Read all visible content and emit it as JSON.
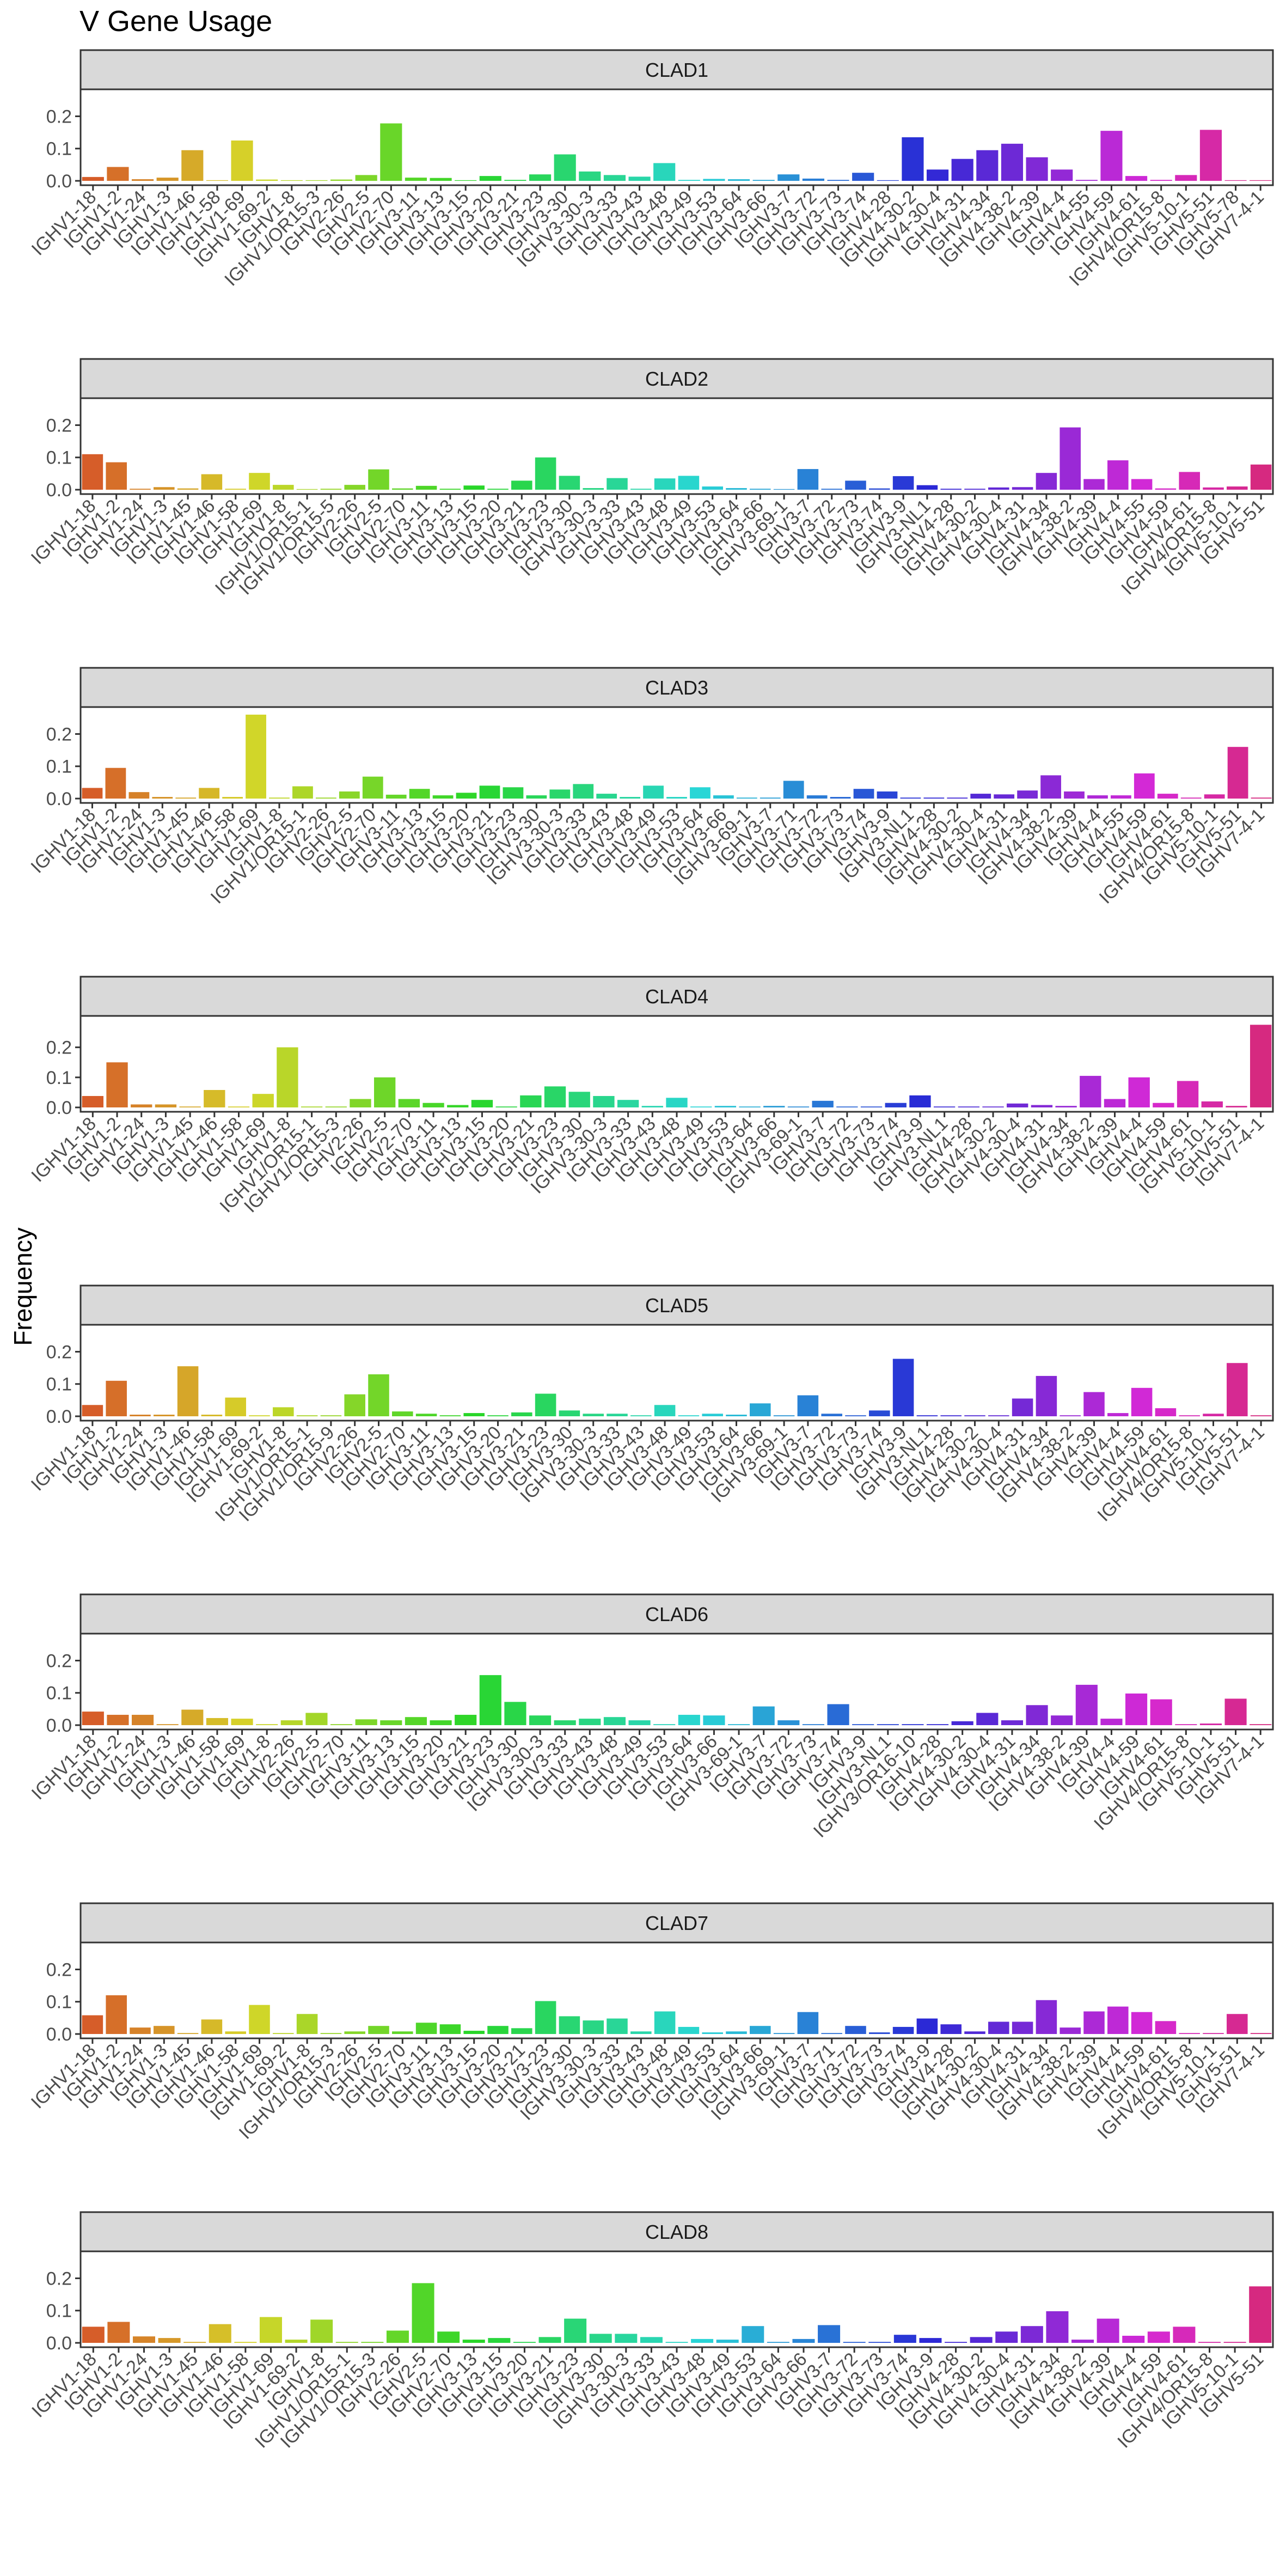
{
  "figure": {
    "title": "V Gene Usage",
    "ylabel": "Frequency"
  },
  "chart_data": [
    {
      "type": "bar",
      "panel": "CLAD1",
      "ylim": [
        0,
        0.27
      ],
      "yticks": [
        0.0,
        0.1,
        0.2
      ],
      "grid": false,
      "categories": [
        "IGHV1-18",
        "IGHV1-2",
        "IGHV1-24",
        "IGHV1-3",
        "IGHV1-46",
        "IGHV1-58",
        "IGHV1-69",
        "IGHV1-69-2",
        "IGHV1-8",
        "IGHV1/OR15-3",
        "IGHV2-26",
        "IGHV2-5",
        "IGHV2-70",
        "IGHV3-11",
        "IGHV3-13",
        "IGHV3-15",
        "IGHV3-20",
        "IGHV3-21",
        "IGHV3-23",
        "IGHV3-30",
        "IGHV3-30-3",
        "IGHV3-33",
        "IGHV3-43",
        "IGHV3-48",
        "IGHV3-49",
        "IGHV3-53",
        "IGHV3-64",
        "IGHV3-66",
        "IGHV3-7",
        "IGHV3-72",
        "IGHV3-73",
        "IGHV3-74",
        "IGHV4-28",
        "IGHV4-30-2",
        "IGHV4-30-4",
        "IGHV4-31",
        "IGHV4-34",
        "IGHV4-38-2",
        "IGHV4-39",
        "IGHV4-4",
        "IGHV4-55",
        "IGHV4-59",
        "IGHV4-61",
        "IGHV4/OR15-8",
        "IGHV5-10-1",
        "IGHV5-51",
        "IGHV5-78",
        "IGHV7-4-1"
      ],
      "values": [
        0.012,
        0.043,
        0.005,
        0.01,
        0.095,
        0.002,
        0.125,
        0.004,
        0.002,
        0.002,
        0.004,
        0.018,
        0.178,
        0.01,
        0.009,
        0.002,
        0.015,
        0.003,
        0.02,
        0.082,
        0.029,
        0.018,
        0.013,
        0.055,
        0.003,
        0.006,
        0.005,
        0.003,
        0.02,
        0.007,
        0.003,
        0.025,
        0.002,
        0.135,
        0.035,
        0.068,
        0.095,
        0.115,
        0.073,
        0.035,
        0.003,
        0.155,
        0.015,
        0.003,
        0.018,
        0.158,
        0.002,
        0.002
      ]
    },
    {
      "type": "bar",
      "panel": "CLAD2",
      "ylim": [
        0,
        0.27
      ],
      "yticks": [
        0.0,
        0.1,
        0.2
      ],
      "grid": false,
      "categories": [
        "IGHV1-18",
        "IGHV1-2",
        "IGHV1-24",
        "IGHV1-3",
        "IGHV1-45",
        "IGHV1-46",
        "IGHV1-58",
        "IGHV1-69",
        "IGHV1-8",
        "IGHV1/OR15-1",
        "IGHV1/OR15-5",
        "IGHV2-26",
        "IGHV2-5",
        "IGHV2-70",
        "IGHV3-11",
        "IGHV3-13",
        "IGHV3-15",
        "IGHV3-20",
        "IGHV3-21",
        "IGHV3-23",
        "IGHV3-30",
        "IGHV3-30-3",
        "IGHV3-33",
        "IGHV3-43",
        "IGHV3-48",
        "IGHV3-49",
        "IGHV3-53",
        "IGHV3-64",
        "IGHV3-66",
        "IGHV3-69-1",
        "IGHV3-7",
        "IGHV3-72",
        "IGHV3-73",
        "IGHV3-74",
        "IGHV3-9",
        "IGHV3-NL1",
        "IGHV4-28",
        "IGHV4-30-2",
        "IGHV4-30-4",
        "IGHV4-31",
        "IGHV4-34",
        "IGHV4-38-2",
        "IGHV4-39",
        "IGHV4-4",
        "IGHV4-55",
        "IGHV4-59",
        "IGHV4-61",
        "IGHV4/OR15-8",
        "IGHV5-10-1",
        "IGHV5-51"
      ],
      "values": [
        0.11,
        0.085,
        0.003,
        0.008,
        0.004,
        0.048,
        0.003,
        0.052,
        0.015,
        0.002,
        0.003,
        0.015,
        0.063,
        0.004,
        0.012,
        0.003,
        0.013,
        0.003,
        0.028,
        0.1,
        0.043,
        0.005,
        0.036,
        0.003,
        0.035,
        0.043,
        0.01,
        0.005,
        0.003,
        0.002,
        0.064,
        0.003,
        0.028,
        0.004,
        0.042,
        0.014,
        0.003,
        0.003,
        0.007,
        0.008,
        0.052,
        0.193,
        0.033,
        0.091,
        0.033,
        0.004,
        0.055,
        0.007,
        0.01,
        0.078
      ]
    },
    {
      "type": "bar",
      "panel": "CLAD3",
      "ylim": [
        0,
        0.27
      ],
      "yticks": [
        0.0,
        0.1,
        0.2
      ],
      "grid": false,
      "categories": [
        "IGHV1-18",
        "IGHV1-2",
        "IGHV1-24",
        "IGHV1-3",
        "IGHV1-45",
        "IGHV1-46",
        "IGHV1-58",
        "IGHV1-69",
        "IGHV1-8",
        "IGHV1/OR15-1",
        "IGHV2-26",
        "IGHV2-5",
        "IGHV2-70",
        "IGHV3-11",
        "IGHV3-13",
        "IGHV3-15",
        "IGHV3-20",
        "IGHV3-21",
        "IGHV3-23",
        "IGHV3-30",
        "IGHV3-30-3",
        "IGHV3-33",
        "IGHV3-43",
        "IGHV3-48",
        "IGHV3-49",
        "IGHV3-53",
        "IGHV3-64",
        "IGHV3-66",
        "IGHV3-69-1",
        "IGHV3-7",
        "IGHV3-71",
        "IGHV3-72",
        "IGHV3-73",
        "IGHV3-74",
        "IGHV3-9",
        "IGHV3-NL1",
        "IGHV4-28",
        "IGHV4-30-2",
        "IGHV4-30-4",
        "IGHV4-31",
        "IGHV4-34",
        "IGHV4-38-2",
        "IGHV4-39",
        "IGHV4-4",
        "IGHV4-55",
        "IGHV4-59",
        "IGHV4-61",
        "IGHV4/OR15-8",
        "IGHV5-10-1",
        "IGHV5-51",
        "IGHV7-4-1"
      ],
      "values": [
        0.033,
        0.095,
        0.02,
        0.005,
        0.003,
        0.033,
        0.005,
        0.26,
        0.003,
        0.038,
        0.003,
        0.022,
        0.068,
        0.012,
        0.03,
        0.01,
        0.018,
        0.04,
        0.035,
        0.01,
        0.028,
        0.045,
        0.015,
        0.005,
        0.04,
        0.005,
        0.035,
        0.01,
        0.003,
        0.003,
        0.055,
        0.01,
        0.005,
        0.03,
        0.022,
        0.003,
        0.003,
        0.003,
        0.015,
        0.013,
        0.025,
        0.072,
        0.022,
        0.01,
        0.01,
        0.078,
        0.015,
        0.003,
        0.013,
        0.16,
        0.003
      ]
    },
    {
      "type": "bar",
      "panel": "CLAD4",
      "ylim": [
        0,
        0.29
      ],
      "yticks": [
        0.0,
        0.1,
        0.2
      ],
      "grid": false,
      "categories": [
        "IGHV1-18",
        "IGHV1-2",
        "IGHV1-24",
        "IGHV1-3",
        "IGHV1-45",
        "IGHV1-46",
        "IGHV1-58",
        "IGHV1-69",
        "IGHV1-8",
        "IGHV1/OR15-1",
        "IGHV1/OR15-3",
        "IGHV2-26",
        "IGHV2-5",
        "IGHV2-70",
        "IGHV3-11",
        "IGHV3-13",
        "IGHV3-15",
        "IGHV3-20",
        "IGHV3-21",
        "IGHV3-23",
        "IGHV3-30",
        "IGHV3-30-3",
        "IGHV3-33",
        "IGHV3-43",
        "IGHV3-48",
        "IGHV3-49",
        "IGHV3-53",
        "IGHV3-64",
        "IGHV3-66",
        "IGHV3-69-1",
        "IGHV3-7",
        "IGHV3-72",
        "IGHV3-73",
        "IGHV3-74",
        "IGHV3-9",
        "IGHV3-NL1",
        "IGHV4-28",
        "IGHV4-30-2",
        "IGHV4-30-4",
        "IGHV4-31",
        "IGHV4-34",
        "IGHV4-38-2",
        "IGHV4-39",
        "IGHV4-4",
        "IGHV4-59",
        "IGHV4-61",
        "IGHV5-10-1",
        "IGHV5-51",
        "IGHV7-4-1"
      ],
      "values": [
        0.038,
        0.15,
        0.01,
        0.01,
        0.003,
        0.058,
        0.003,
        0.045,
        0.2,
        0.003,
        0.003,
        0.028,
        0.1,
        0.028,
        0.015,
        0.008,
        0.025,
        0.003,
        0.04,
        0.07,
        0.052,
        0.038,
        0.025,
        0.005,
        0.032,
        0.003,
        0.005,
        0.003,
        0.005,
        0.003,
        0.022,
        0.003,
        0.003,
        0.015,
        0.04,
        0.003,
        0.003,
        0.003,
        0.013,
        0.008,
        0.005,
        0.105,
        0.028,
        0.1,
        0.015,
        0.088,
        0.02,
        0.005,
        0.275
      ]
    },
    {
      "type": "bar",
      "panel": "CLAD5",
      "ylim": [
        0,
        0.27
      ],
      "yticks": [
        0.0,
        0.1,
        0.2
      ],
      "grid": false,
      "categories": [
        "IGHV1-18",
        "IGHV1-2",
        "IGHV1-24",
        "IGHV1-3",
        "IGHV1-46",
        "IGHV1-58",
        "IGHV1-69",
        "IGHV1-69-2",
        "IGHV1-8",
        "IGHV1/OR15-1",
        "IGHV1/OR15-9",
        "IGHV2-26",
        "IGHV2-5",
        "IGHV2-70",
        "IGHV3-11",
        "IGHV3-13",
        "IGHV3-15",
        "IGHV3-20",
        "IGHV3-21",
        "IGHV3-23",
        "IGHV3-30",
        "IGHV3-30-3",
        "IGHV3-33",
        "IGHV3-43",
        "IGHV3-48",
        "IGHV3-49",
        "IGHV3-53",
        "IGHV3-64",
        "IGHV3-66",
        "IGHV3-69-1",
        "IGHV3-7",
        "IGHV3-72",
        "IGHV3-73",
        "IGHV3-74",
        "IGHV3-9",
        "IGHV3-NL1",
        "IGHV4-28",
        "IGHV4-30-2",
        "IGHV4-30-4",
        "IGHV4-31",
        "IGHV4-34",
        "IGHV4-38-2",
        "IGHV4-39",
        "IGHV4-4",
        "IGHV4-59",
        "IGHV4-61",
        "IGHV4/OR15-8",
        "IGHV5-10-1",
        "IGHV5-51",
        "IGHV7-4-1"
      ],
      "values": [
        0.035,
        0.11,
        0.005,
        0.005,
        0.155,
        0.005,
        0.058,
        0.003,
        0.028,
        0.003,
        0.003,
        0.068,
        0.13,
        0.015,
        0.008,
        0.003,
        0.01,
        0.003,
        0.012,
        0.07,
        0.018,
        0.008,
        0.008,
        0.003,
        0.035,
        0.003,
        0.008,
        0.005,
        0.04,
        0.003,
        0.065,
        0.008,
        0.003,
        0.018,
        0.178,
        0.003,
        0.003,
        0.003,
        0.003,
        0.055,
        0.125,
        0.003,
        0.075,
        0.01,
        0.088,
        0.025,
        0.003,
        0.008,
        0.165,
        0.003
      ]
    },
    {
      "type": "bar",
      "panel": "CLAD6",
      "ylim": [
        0,
        0.27
      ],
      "yticks": [
        0.0,
        0.1,
        0.2
      ],
      "grid": false,
      "categories": [
        "IGHV1-18",
        "IGHV1-2",
        "IGHV1-24",
        "IGHV1-3",
        "IGHV1-46",
        "IGHV1-58",
        "IGHV1-69",
        "IGHV1-8",
        "IGHV2-26",
        "IGHV2-5",
        "IGHV2-70",
        "IGHV3-11",
        "IGHV3-13",
        "IGHV3-15",
        "IGHV3-20",
        "IGHV3-21",
        "IGHV3-23",
        "IGHV3-30",
        "IGHV3-30-3",
        "IGHV3-33",
        "IGHV3-43",
        "IGHV3-48",
        "IGHV3-49",
        "IGHV3-53",
        "IGHV3-64",
        "IGHV3-66",
        "IGHV3-69-1",
        "IGHV3-7",
        "IGHV3-72",
        "IGHV3-73",
        "IGHV3-74",
        "IGHV3-9",
        "IGHV3-NL1",
        "IGHV3/OR16-10",
        "IGHV4-28",
        "IGHV4-30-2",
        "IGHV4-30-4",
        "IGHV4-31",
        "IGHV4-34",
        "IGHV4-38-2",
        "IGHV4-39",
        "IGHV4-4",
        "IGHV4-59",
        "IGHV4-61",
        "IGHV4/OR15-8",
        "IGHV5-10-1",
        "IGHV5-51",
        "IGHV7-4-1"
      ],
      "values": [
        0.042,
        0.032,
        0.032,
        0.003,
        0.048,
        0.022,
        0.02,
        0.003,
        0.015,
        0.038,
        0.003,
        0.018,
        0.015,
        0.025,
        0.015,
        0.032,
        0.155,
        0.072,
        0.03,
        0.015,
        0.02,
        0.025,
        0.015,
        0.003,
        0.032,
        0.03,
        0.003,
        0.058,
        0.015,
        0.003,
        0.065,
        0.003,
        0.003,
        0.003,
        0.003,
        0.012,
        0.038,
        0.015,
        0.062,
        0.03,
        0.125,
        0.02,
        0.098,
        0.08,
        0.003,
        0.005,
        0.082,
        0.003
      ]
    },
    {
      "type": "bar",
      "panel": "CLAD7",
      "ylim": [
        0,
        0.27
      ],
      "yticks": [
        0.0,
        0.1,
        0.2
      ],
      "grid": false,
      "categories": [
        "IGHV1-18",
        "IGHV1-2",
        "IGHV1-24",
        "IGHV1-3",
        "IGHV1-45",
        "IGHV1-46",
        "IGHV1-58",
        "IGHV1-69",
        "IGHV1-69-2",
        "IGHV1-8",
        "IGHV1/OR15-3",
        "IGHV2-26",
        "IGHV2-5",
        "IGHV2-70",
        "IGHV3-11",
        "IGHV3-13",
        "IGHV3-15",
        "IGHV3-20",
        "IGHV3-21",
        "IGHV3-23",
        "IGHV3-30",
        "IGHV3-30-3",
        "IGHV3-33",
        "IGHV3-43",
        "IGHV3-48",
        "IGHV3-49",
        "IGHV3-53",
        "IGHV3-64",
        "IGHV3-66",
        "IGHV3-69-1",
        "IGHV3-7",
        "IGHV3-71",
        "IGHV3-72",
        "IGHV3-73",
        "IGHV3-74",
        "IGHV3-9",
        "IGHV4-28",
        "IGHV4-30-2",
        "IGHV4-30-4",
        "IGHV4-31",
        "IGHV4-34",
        "IGHV4-38-2",
        "IGHV4-39",
        "IGHV4-4",
        "IGHV4-59",
        "IGHV4-61",
        "IGHV4/OR15-8",
        "IGHV5-10-1",
        "IGHV5-51",
        "IGHV7-4-1"
      ],
      "values": [
        0.058,
        0.12,
        0.02,
        0.025,
        0.003,
        0.045,
        0.008,
        0.09,
        0.003,
        0.062,
        0.003,
        0.008,
        0.025,
        0.008,
        0.035,
        0.03,
        0.01,
        0.025,
        0.018,
        0.102,
        0.055,
        0.042,
        0.048,
        0.008,
        0.07,
        0.022,
        0.005,
        0.008,
        0.025,
        0.003,
        0.068,
        0.003,
        0.025,
        0.005,
        0.022,
        0.048,
        0.03,
        0.008,
        0.038,
        0.038,
        0.105,
        0.02,
        0.07,
        0.085,
        0.068,
        0.04,
        0.003,
        0.003,
        0.062,
        0.003
      ]
    },
    {
      "type": "bar",
      "panel": "CLAD8",
      "ylim": [
        0,
        0.27
      ],
      "yticks": [
        0.0,
        0.1,
        0.2
      ],
      "grid": false,
      "categories": [
        "IGHV1-18",
        "IGHV1-2",
        "IGHV1-24",
        "IGHV1-3",
        "IGHV1-45",
        "IGHV1-46",
        "IGHV1-58",
        "IGHV1-69",
        "IGHV1-69-2",
        "IGHV1-8",
        "IGHV1/OR15-1",
        "IGHV1/OR15-3",
        "IGHV2-26",
        "IGHV2-5",
        "IGHV2-70",
        "IGHV3-13",
        "IGHV3-15",
        "IGHV3-20",
        "IGHV3-21",
        "IGHV3-23",
        "IGHV3-30",
        "IGHV3-30-3",
        "IGHV3-33",
        "IGHV3-43",
        "IGHV3-48",
        "IGHV3-49",
        "IGHV3-53",
        "IGHV3-64",
        "IGHV3-66",
        "IGHV3-7",
        "IGHV3-72",
        "IGHV3-73",
        "IGHV3-74",
        "IGHV3-9",
        "IGHV4-28",
        "IGHV4-30-2",
        "IGHV4-30-4",
        "IGHV4-31",
        "IGHV4-34",
        "IGHV4-38-2",
        "IGHV4-39",
        "IGHV4-4",
        "IGHV4-59",
        "IGHV4-61",
        "IGHV4/OR15-8",
        "IGHV5-10-1",
        "IGHV5-51"
      ],
      "values": [
        0.05,
        0.065,
        0.02,
        0.015,
        0.003,
        0.058,
        0.003,
        0.08,
        0.01,
        0.072,
        0.003,
        0.003,
        0.038,
        0.185,
        0.035,
        0.01,
        0.015,
        0.003,
        0.018,
        0.075,
        0.028,
        0.028,
        0.018,
        0.003,
        0.012,
        0.01,
        0.052,
        0.003,
        0.012,
        0.055,
        0.003,
        0.003,
        0.025,
        0.015,
        0.003,
        0.018,
        0.035,
        0.052,
        0.098,
        0.01,
        0.075,
        0.022,
        0.035,
        0.05,
        0.003,
        0.003,
        0.175
      ]
    }
  ]
}
